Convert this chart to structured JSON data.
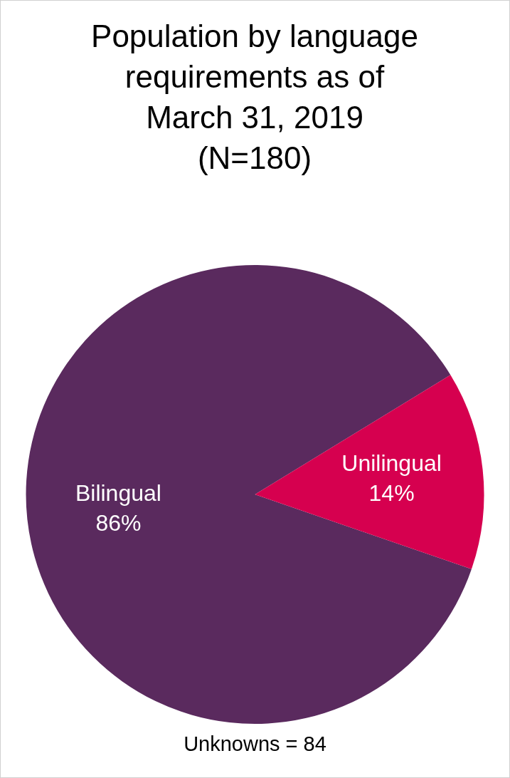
{
  "chart_data": {
    "type": "pie",
    "title": "Population by language requirements as of March 31, 2019 (N=180)",
    "categories": [
      "Bilingual",
      "Unilingual"
    ],
    "values": [
      86,
      14
    ],
    "colors": [
      "#5a2a5e",
      "#d6004f"
    ],
    "value_labels": [
      "86%",
      "14%"
    ],
    "annotations": [
      "Unknowns = 84"
    ],
    "legend": false
  }
}
